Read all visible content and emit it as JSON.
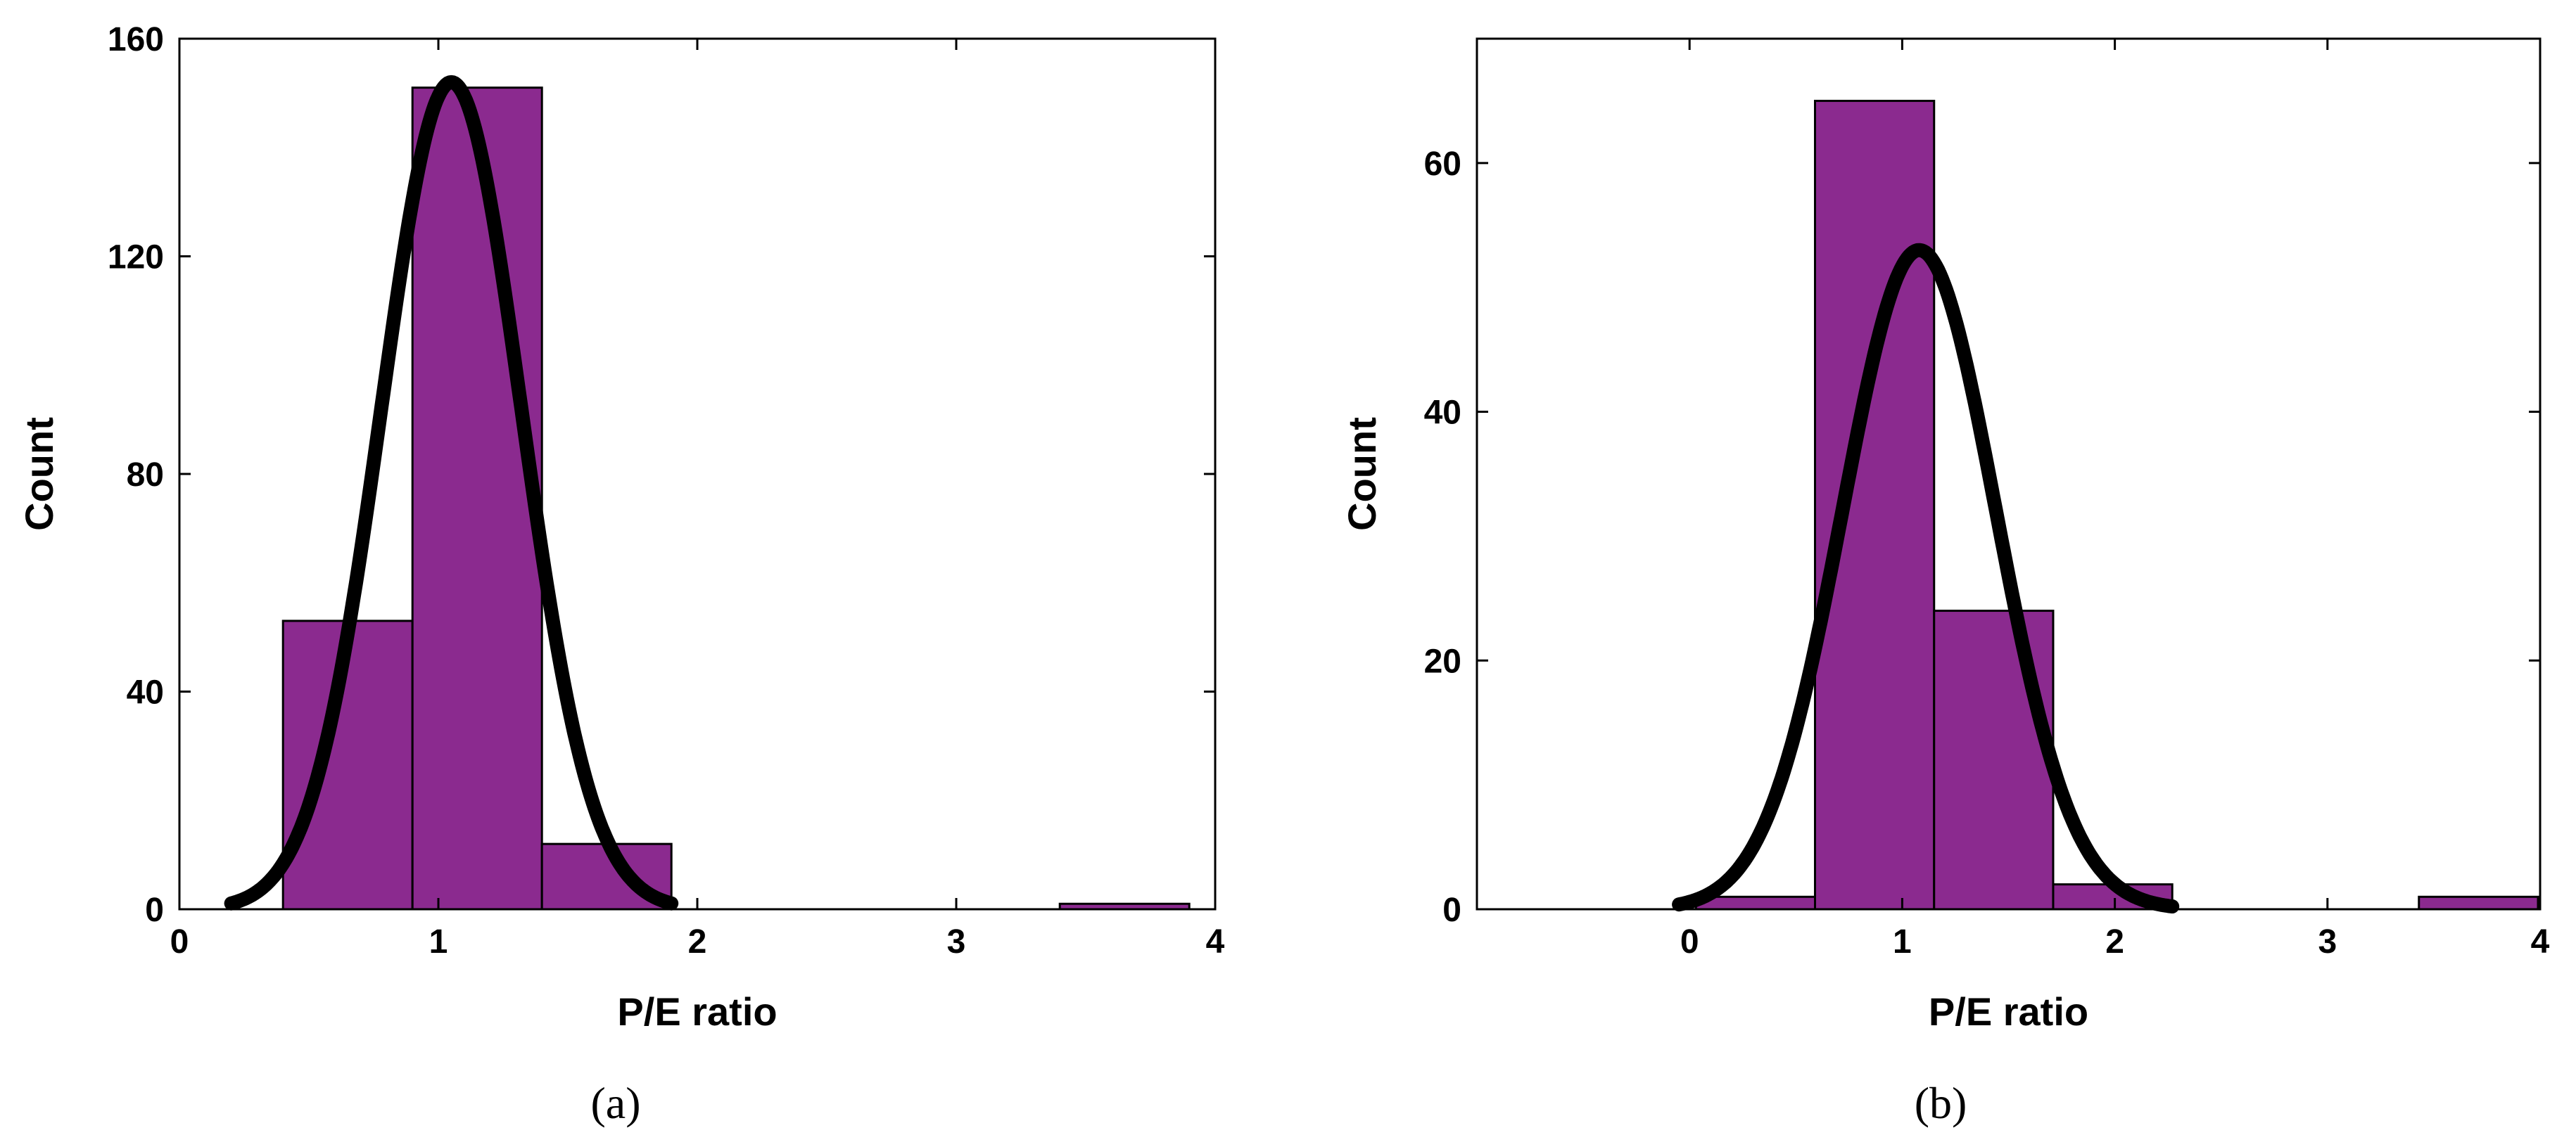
{
  "chart_data": [
    {
      "type": "bar",
      "caption": "(a)",
      "xlabel": "P/E ratio",
      "ylabel": "Count",
      "xlim": [
        0,
        4
      ],
      "ylim": [
        0,
        160
      ],
      "xticks": [
        0,
        1,
        2,
        3,
        4
      ],
      "yticks": [
        0,
        40,
        80,
        120,
        160
      ],
      "grid": false,
      "bins": [
        {
          "x0": 0.4,
          "x1": 0.9,
          "count": 53
        },
        {
          "x0": 0.9,
          "x1": 1.4,
          "count": 151
        },
        {
          "x0": 1.4,
          "x1": 1.9,
          "count": 12
        },
        {
          "x0": 3.4,
          "x1": 3.9,
          "count": 1
        }
      ],
      "fit_curve": {
        "type": "normal",
        "mean": 1.05,
        "sd": 0.27,
        "peak": 152,
        "x_range": [
          0.2,
          1.9
        ]
      },
      "bar_color": "#8B2A8F",
      "curve_color": "#000000"
    },
    {
      "type": "bar",
      "caption": "(b)",
      "xlabel": "P/E ratio",
      "ylabel": "Count",
      "xlim": [
        -1.0,
        4
      ],
      "ylim": [
        0,
        70
      ],
      "xticks": [
        0,
        1,
        2,
        3,
        4
      ],
      "yticks": [
        0,
        20,
        40,
        60
      ],
      "grid": false,
      "bins": [
        {
          "x0": 0.03,
          "x1": 0.59,
          "count": 1
        },
        {
          "x0": 0.59,
          "x1": 1.15,
          "count": 65
        },
        {
          "x0": 1.15,
          "x1": 1.71,
          "count": 24
        },
        {
          "x0": 1.71,
          "x1": 2.27,
          "count": 2
        },
        {
          "x0": 3.43,
          "x1": 3.99,
          "count": 1
        }
      ],
      "fit_curve": {
        "type": "normal",
        "mean": 1.08,
        "sd": 0.36,
        "peak": 53,
        "x_range": [
          -0.05,
          2.27
        ]
      },
      "bar_color": "#8B2A8F",
      "curve_color": "#000000"
    }
  ]
}
